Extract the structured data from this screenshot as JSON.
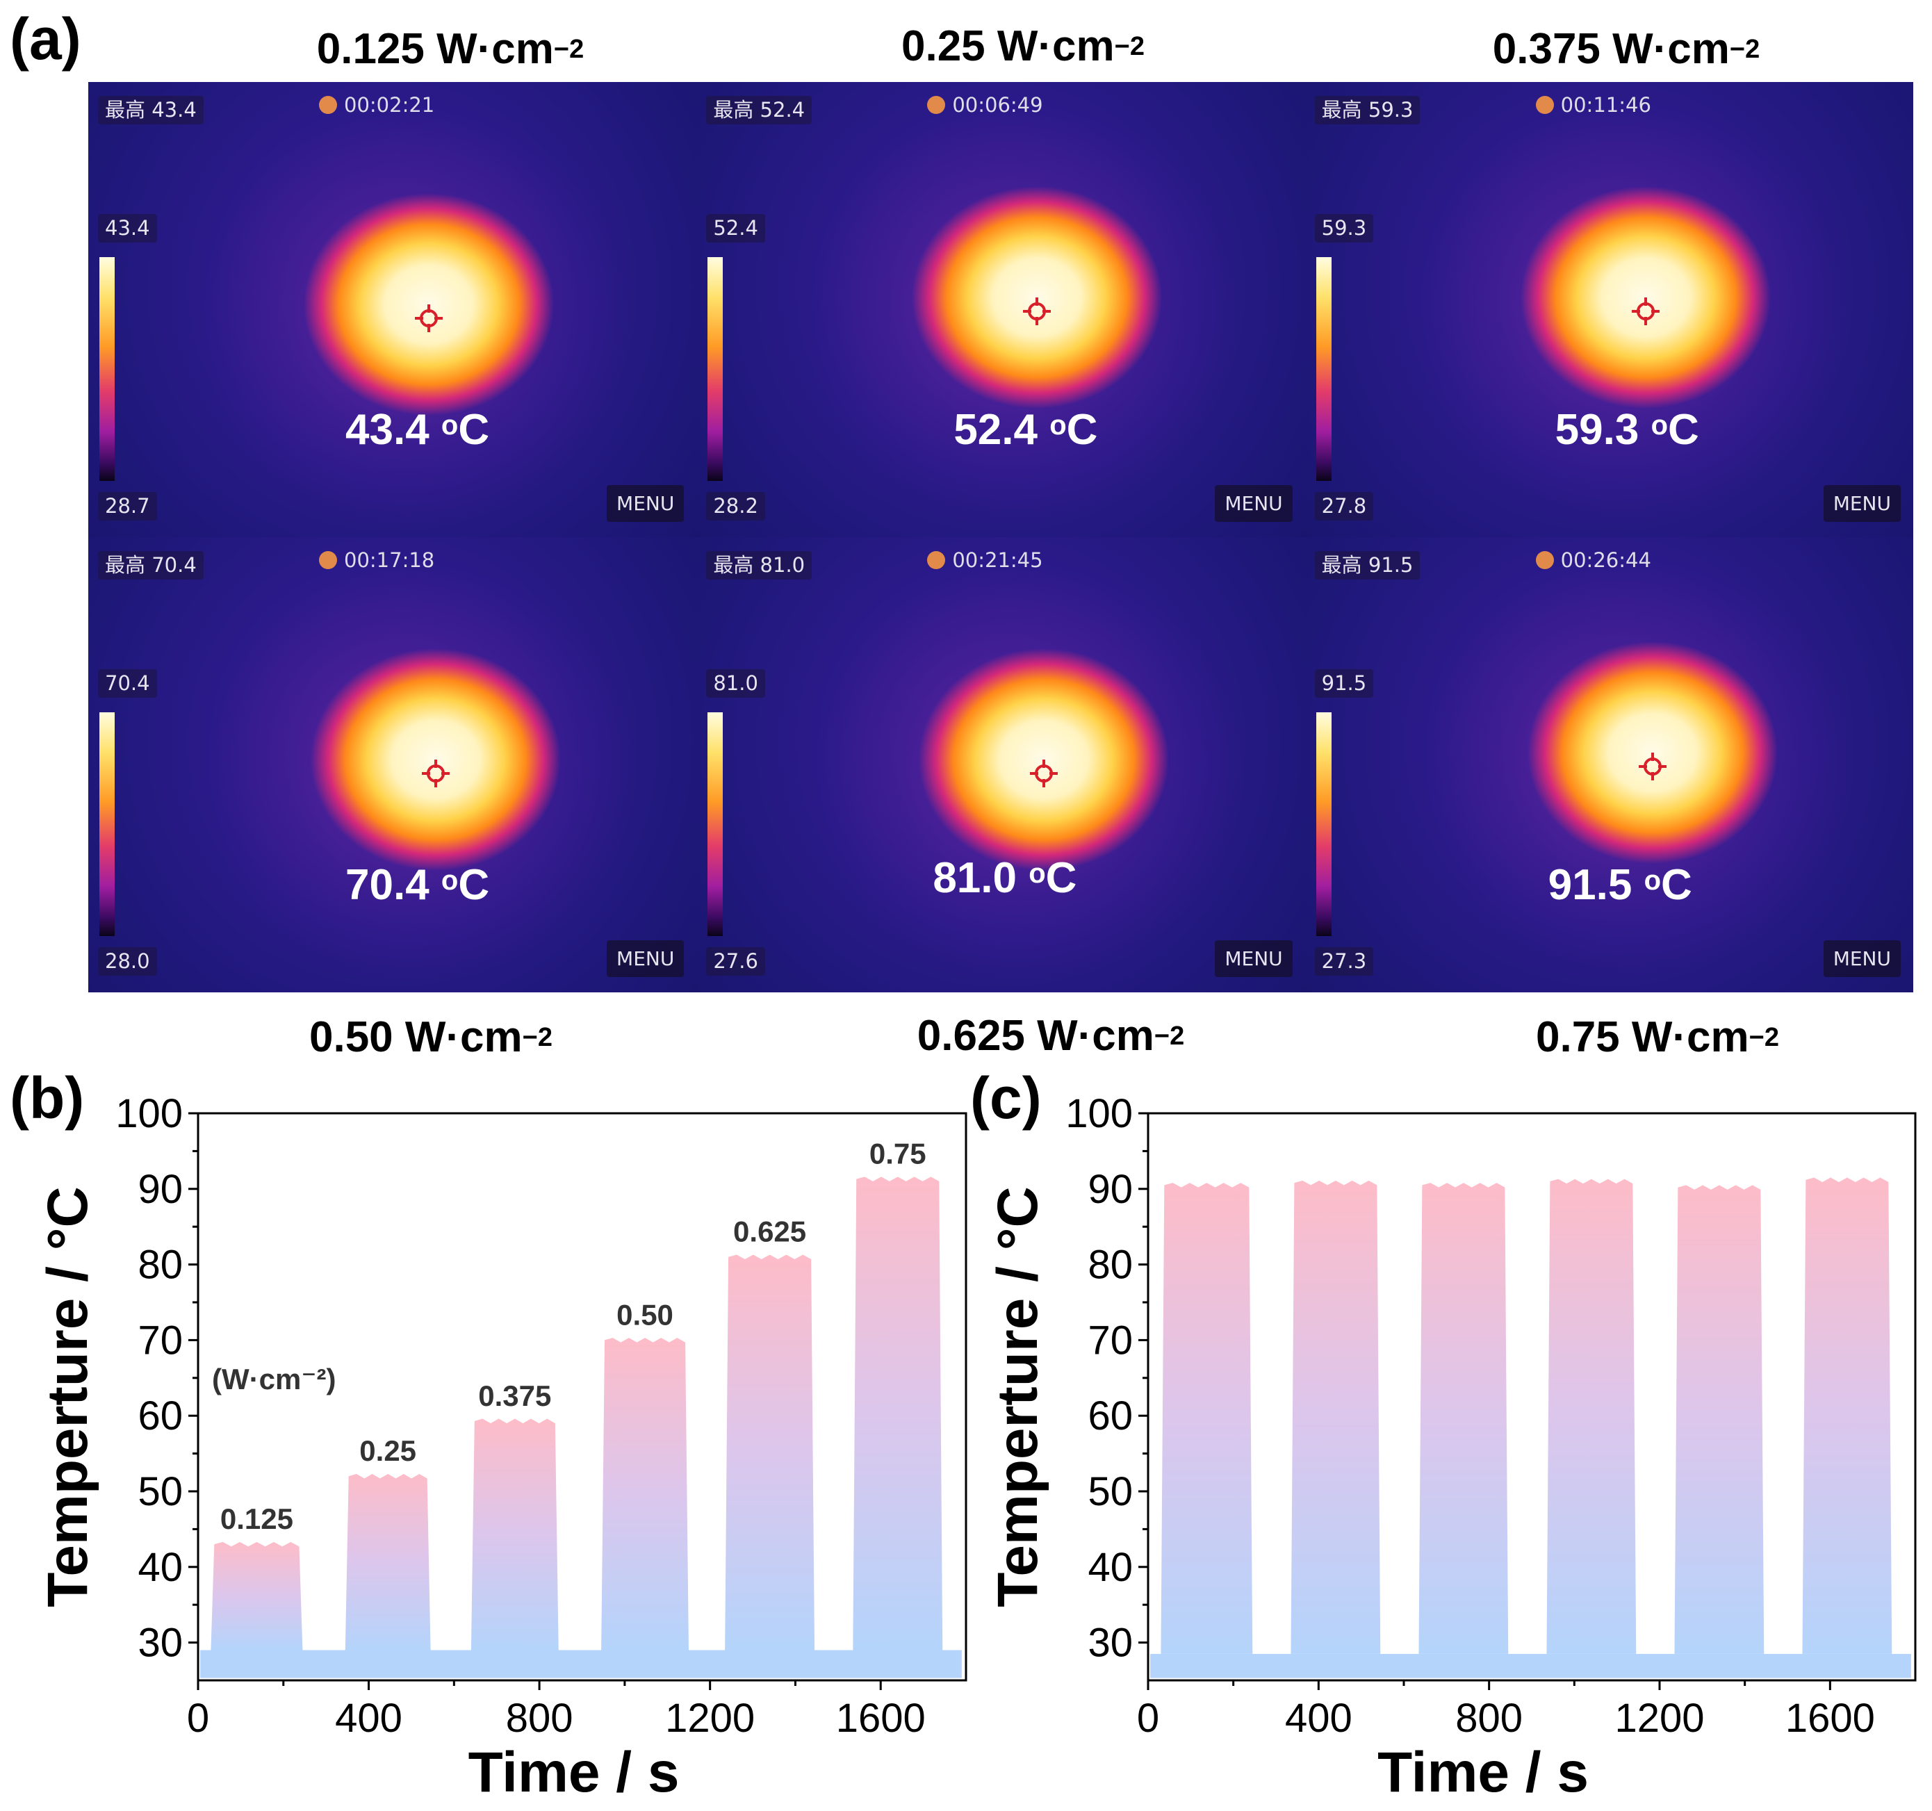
{
  "panel_a": {
    "letter": "(a)",
    "unit_main": "W·cm",
    "unit_exp": "−2",
    "temp_unit_sup": "o",
    "temp_unit": "C",
    "cells": [
      {
        "power": "0.125",
        "max_label": "最高 43.4",
        "time": "00:02:21",
        "scale_max": "43.4",
        "scale_min": "28.7",
        "menu": "MENU",
        "peak_value": "43.4"
      },
      {
        "power": "0.25",
        "max_label": "最高 52.4",
        "time": "00:06:49",
        "scale_max": "52.4",
        "scale_min": "28.2",
        "menu": "MENU",
        "peak_value": "52.4"
      },
      {
        "power": "0.375",
        "max_label": "最高 59.3",
        "time": "00:11:46",
        "scale_max": "59.3",
        "scale_min": "27.8",
        "menu": "MENU",
        "peak_value": "59.3"
      },
      {
        "power": "0.50",
        "max_label": "最高 70.4",
        "time": "00:17:18",
        "scale_max": "70.4",
        "scale_min": "28.0",
        "menu": "MENU",
        "peak_value": "70.4"
      },
      {
        "power": "0.625",
        "max_label": "最高 81.0",
        "time": "00:21:45",
        "scale_max": "81.0",
        "scale_min": "27.6",
        "menu": "MENU",
        "peak_value": "81.0"
      },
      {
        "power": "0.75",
        "max_label": "最高 91.5",
        "time": "00:26:44",
        "scale_max": "91.5",
        "scale_min": "27.3",
        "menu": "MENU",
        "peak_value": "91.5"
      }
    ]
  },
  "colors": {
    "fill_top": "#fdbcc8",
    "fill_mid": "#dcc6ec",
    "fill_bottom": "#b4d4fb",
    "axis": "#000000"
  },
  "chart_data": [
    {
      "letter": "(b)",
      "type": "area",
      "xlabel": "Time / s",
      "ylabel": "Temperture / °C",
      "xlim": [
        0,
        1800
      ],
      "ylim": [
        25,
        100
      ],
      "xticks": [
        0,
        400,
        800,
        1200,
        1600
      ],
      "yticks": [
        30,
        40,
        50,
        60,
        70,
        80,
        90,
        100
      ],
      "baseline": 29,
      "annotation_unit": "(W·cm⁻²)",
      "pulses": [
        {
          "label": "0.125",
          "t_on": 30,
          "t_off": 245,
          "plateau": 43.0
        },
        {
          "label": "0.25",
          "t_on": 345,
          "t_off": 545,
          "plateau": 52.0
        },
        {
          "label": "0.375",
          "t_on": 640,
          "t_off": 845,
          "plateau": 59.3
        },
        {
          "label": "0.50",
          "t_on": 945,
          "t_off": 1150,
          "plateau": 70.0
        },
        {
          "label": "0.625",
          "t_on": 1235,
          "t_off": 1445,
          "plateau": 81.0
        },
        {
          "label": "0.75",
          "t_on": 1535,
          "t_off": 1745,
          "plateau": 91.3
        }
      ]
    },
    {
      "letter": "(c)",
      "type": "area",
      "xlabel": "Time / s",
      "ylabel": "Temperture / °C",
      "xlim": [
        0,
        1800
      ],
      "ylim": [
        25,
        100
      ],
      "xticks": [
        0,
        400,
        800,
        1200,
        1600
      ],
      "yticks": [
        30,
        40,
        50,
        60,
        70,
        80,
        90,
        100
      ],
      "baseline": 28.5,
      "pulses": [
        {
          "t_on": 30,
          "t_off": 245,
          "plateau": 90.5
        },
        {
          "t_on": 335,
          "t_off": 545,
          "plateau": 90.8
        },
        {
          "t_on": 635,
          "t_off": 845,
          "plateau": 90.5
        },
        {
          "t_on": 935,
          "t_off": 1145,
          "plateau": 91.0
        },
        {
          "t_on": 1235,
          "t_off": 1445,
          "plateau": 90.2
        },
        {
          "t_on": 1535,
          "t_off": 1745,
          "plateau": 91.2
        }
      ]
    }
  ]
}
